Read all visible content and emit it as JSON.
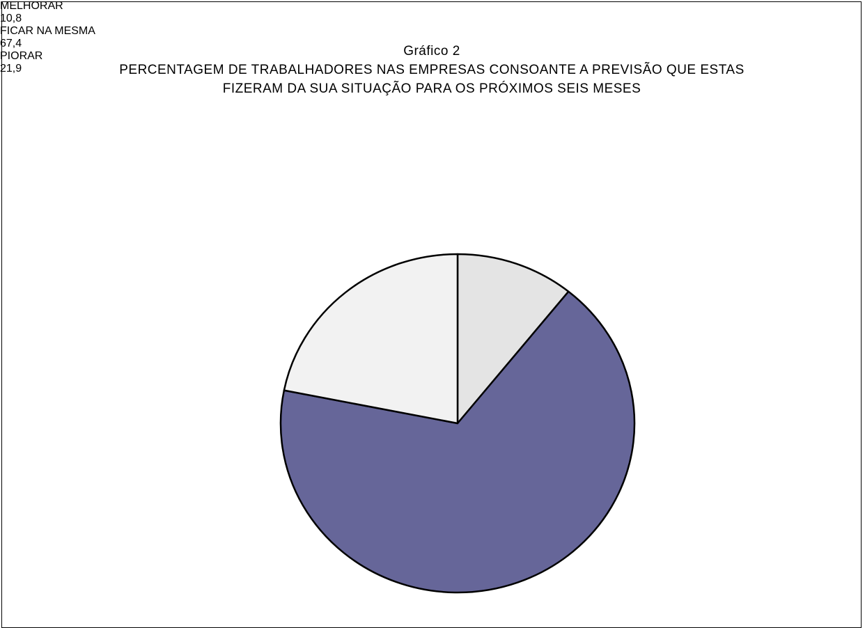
{
  "chart_data": {
    "type": "pie",
    "title": "Gráfico 2",
    "subtitle": "PERCENTAGEM DE TRABALHADORES NAS EMPRESAS CONSOANTE A PREVISÃO QUE ESTAS FIZERAM DA SUA SITUAÇÃO PARA OS PRÓXIMOS SEIS MESES",
    "categories": [
      "MELHORAR",
      "FICAR NA MESMA",
      "PIORAR"
    ],
    "values": [
      10.8,
      67.4,
      21.9
    ],
    "value_labels": [
      "10,8",
      "67,4",
      "21,9"
    ],
    "colors": [
      "#e4e4e4",
      "#666699",
      "#f2f2f2"
    ]
  }
}
